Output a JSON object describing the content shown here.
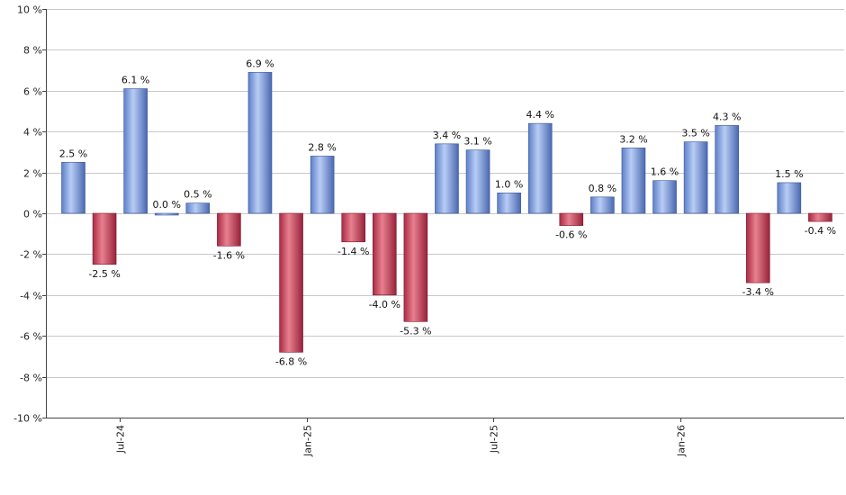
{
  "chart_data": {
    "type": "bar",
    "title": "",
    "xlabel": "",
    "ylabel": "",
    "ylim": [
      -10,
      10
    ],
    "y_ticks": [
      10,
      8,
      6,
      4,
      2,
      0,
      -2,
      -4,
      -6,
      -8,
      -10
    ],
    "y_tick_labels": [
      "10 %",
      "8 %",
      "6 %",
      "4 %",
      "2 %",
      "0 %",
      "-2 %",
      "-4 %",
      "-6 %",
      "-8 %",
      "-10 %"
    ],
    "grid": true,
    "legend": "none",
    "x_tick_labels": [
      {
        "label": "Jul-24",
        "index": 1.5
      },
      {
        "label": "Jan-25",
        "index": 7.5
      },
      {
        "label": "Jul-25",
        "index": 13.5
      },
      {
        "label": "Jan-26",
        "index": 19.5
      }
    ],
    "values": [
      2.5,
      -2.5,
      6.1,
      0.0,
      0.5,
      -1.6,
      6.9,
      -6.8,
      2.8,
      -1.4,
      -4.0,
      -5.3,
      3.4,
      3.1,
      1.0,
      4.4,
      -0.6,
      0.8,
      3.2,
      1.6,
      3.5,
      4.3,
      -3.4,
      1.5,
      -0.4
    ],
    "value_labels": [
      "2.5 %",
      "-2.5 %",
      "6.1 %",
      "0.0 %",
      "0.5 %",
      "-1.6 %",
      "6.9 %",
      "-6.8 %",
      "2.8 %",
      "-1.4 %",
      "-4.0 %",
      "-5.3 %",
      "3.4 %",
      "3.1 %",
      "1.0 %",
      "4.4 %",
      "-0.6 %",
      "0.8 %",
      "3.2 %",
      "1.6 %",
      "3.5 %",
      "4.3 %",
      "-3.4 %",
      "1.5 %",
      "-0.4 %"
    ],
    "colors": {
      "positive": "#7f9fe0",
      "negative": "#c8405a",
      "grid": "#c8c8c8",
      "axis": "#444444"
    }
  }
}
